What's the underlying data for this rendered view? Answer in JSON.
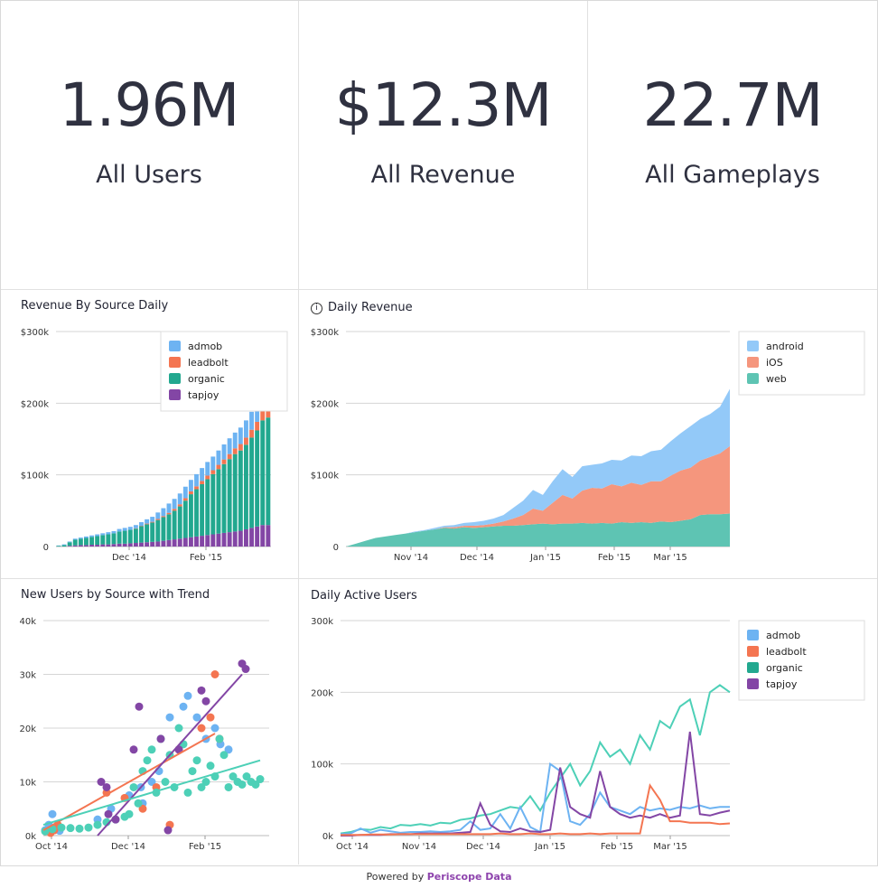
{
  "kpis": [
    {
      "value": "1.96M",
      "label": "All Users"
    },
    {
      "value": "$12.3M",
      "label": "All Revenue"
    },
    {
      "value": "22.7M",
      "label": "All Gameplays"
    }
  ],
  "colors": {
    "admob": "#6db3f2",
    "leadbolt": "#f47551",
    "organic": "#22a88f",
    "organic_line": "#4dd0b7",
    "tapjoy": "#8346a5",
    "android": "#93c9f8",
    "ios": "#f5967d",
    "web": "#5ec4b3"
  },
  "footer": {
    "prefix": "Powered by ",
    "brand": "Periscope Data"
  },
  "chart_data": [
    {
      "type": "bar",
      "title": "Revenue By Source Daily",
      "stacked": true,
      "yticks": [
        "$300k",
        "$200k",
        "$100k",
        "0"
      ],
      "ylim": [
        0,
        300000
      ],
      "xticks": [
        "Dec '14",
        "Feb '15"
      ],
      "legend": [
        "admob",
        "leadbolt",
        "organic",
        "tapjoy"
      ],
      "legend_position": "top-right",
      "grid": true,
      "series": [
        {
          "name": "tapjoy",
          "values": [
            0,
            0,
            1000,
            1500,
            2000,
            2000,
            2500,
            2500,
            3000,
            3000,
            3500,
            4000,
            4000,
            4500,
            5000,
            5500,
            6000,
            6500,
            7000,
            8000,
            9000,
            10000,
            11000,
            12000,
            13000,
            14000,
            15000,
            16000,
            17000,
            18000,
            19000,
            20000,
            21000,
            22000,
            24000,
            26000,
            28000,
            30000,
            30000
          ]
        },
        {
          "name": "organic",
          "values": [
            1000,
            2000,
            5000,
            8000,
            9000,
            10000,
            11000,
            12000,
            13000,
            14000,
            15000,
            17000,
            18000,
            19000,
            20000,
            23000,
            25000,
            27000,
            30000,
            33000,
            36000,
            40000,
            45000,
            52000,
            60000,
            66000,
            72000,
            78000,
            84000,
            90000,
            96000,
            102000,
            108000,
            112000,
            118000,
            126000,
            134000,
            146000,
            150000
          ]
        },
        {
          "name": "leadbolt",
          "values": [
            0,
            0,
            0,
            0,
            0,
            0,
            0,
            0,
            0,
            0,
            0,
            0,
            0,
            0,
            500,
            500,
            1000,
            1000,
            1500,
            1500,
            2000,
            2500,
            3000,
            3500,
            4000,
            4000,
            4500,
            5000,
            5500,
            6000,
            6500,
            7000,
            8000,
            9000,
            10000,
            11000,
            12000,
            13000,
            14000
          ]
        },
        {
          "name": "admob",
          "values": [
            500,
            1000,
            1000,
            1500,
            1500,
            2000,
            2000,
            2500,
            2500,
            3000,
            3000,
            3500,
            4000,
            4000,
            4500,
            5000,
            6000,
            7000,
            9000,
            11000,
            13000,
            14000,
            15000,
            16000,
            16000,
            17000,
            18000,
            19000,
            19000,
            20000,
            21000,
            22000,
            22000,
            23000,
            24000,
            25000,
            26000,
            26000,
            27000
          ]
        }
      ]
    },
    {
      "type": "area",
      "title": "Daily Revenue",
      "stacked": true,
      "yticks": [
        "$300k",
        "$200k",
        "$100k",
        "0"
      ],
      "ylim": [
        0,
        300000
      ],
      "xticks": [
        "Nov '14",
        "Dec '14",
        "Jan '15",
        "Feb '15",
        "Mar '15"
      ],
      "legend": [
        "android",
        "iOS",
        "web"
      ],
      "legend_position": "top-right",
      "grid": true,
      "series": [
        {
          "name": "web",
          "values": [
            0,
            4000,
            8000,
            12000,
            14000,
            16000,
            18000,
            20000,
            22000,
            24000,
            26000,
            25000,
            27000,
            26000,
            27000,
            28000,
            29000,
            29000,
            30000,
            31000,
            32000,
            31000,
            32000,
            32000,
            33000,
            32000,
            33000,
            32000,
            34000,
            33000,
            34000,
            33000,
            35000,
            34000,
            36000,
            38000,
            44000,
            45000,
            45000,
            46000
          ]
        },
        {
          "name": "iOS",
          "values": [
            0,
            0,
            0,
            0,
            0,
            0,
            0,
            0,
            0,
            0,
            1000,
            2000,
            2000,
            3000,
            3000,
            4000,
            6000,
            10000,
            14000,
            22000,
            18000,
            30000,
            40000,
            35000,
            45000,
            50000,
            48000,
            55000,
            50000,
            56000,
            52000,
            58000,
            56000,
            65000,
            70000,
            72000,
            76000,
            80000,
            85000,
            94000
          ]
        },
        {
          "name": "android",
          "values": [
            0,
            0,
            0,
            0,
            0,
            0,
            0,
            1000,
            1000,
            2000,
            2000,
            3000,
            4000,
            5000,
            6000,
            7000,
            9000,
            15000,
            20000,
            26000,
            22000,
            30000,
            36000,
            30000,
            34000,
            32000,
            35000,
            34000,
            36000,
            38000,
            40000,
            42000,
            44000,
            48000,
            52000,
            58000,
            58000,
            60000,
            65000,
            80000
          ]
        }
      ]
    },
    {
      "type": "scatter",
      "title": "New Users by Source with Trend",
      "yticks": [
        "40k",
        "30k",
        "20k",
        "10k",
        "0k"
      ],
      "ylim": [
        0,
        40000
      ],
      "xticks": [
        "Oct '14",
        "Dec '14",
        "Feb '15"
      ],
      "grid": true,
      "series": [
        {
          "name": "admob",
          "x": [
            2,
            6,
            10,
            14,
            18,
            60,
            75,
            95,
            108,
            110,
            120,
            128,
            140,
            155,
            160,
            170,
            180,
            190,
            196,
            205
          ],
          "y": [
            1000,
            2000,
            4000,
            1500,
            900,
            3000,
            5000,
            7500,
            9000,
            6000,
            10000,
            12000,
            22000,
            24000,
            26000,
            22000,
            18000,
            20000,
            17000,
            16000
          ]
        },
        {
          "name": "leadbolt",
          "x": [
            8,
            12,
            16,
            70,
            90,
            110,
            125,
            140,
            150,
            175,
            185,
            190,
            195
          ],
          "y": [
            500,
            1000,
            2000,
            8000,
            7000,
            5000,
            9000,
            2000,
            16000,
            20000,
            22000,
            30000,
            18000
          ]
        },
        {
          "name": "organic",
          "x": [
            2,
            10,
            20,
            30,
            40,
            50,
            60,
            70,
            80,
            90,
            95,
            100,
            105,
            110,
            115,
            120,
            125,
            130,
            135,
            140,
            145,
            150,
            155,
            160,
            165,
            170,
            175,
            180,
            185,
            190,
            195,
            200,
            205,
            210,
            215,
            220,
            225,
            230,
            235,
            240
          ],
          "y": [
            800,
            1200,
            1500,
            1400,
            1300,
            1500,
            2000,
            2500,
            3000,
            3500,
            4000,
            9000,
            6000,
            12000,
            14000,
            16000,
            8000,
            18000,
            10000,
            15000,
            9000,
            20000,
            17000,
            8000,
            12000,
            14000,
            9000,
            10000,
            13000,
            11000,
            18000,
            15000,
            9000,
            11000,
            10000,
            9500,
            11000,
            10000,
            9500,
            10500
          ]
        },
        {
          "name": "tapjoy",
          "x": [
            64,
            70,
            72,
            80,
            100,
            106,
            130,
            138,
            150,
            175,
            180,
            220,
            224
          ],
          "y": [
            10000,
            9000,
            4000,
            3000,
            16000,
            24000,
            18000,
            1000,
            16000,
            27000,
            25000,
            32000,
            31000
          ]
        }
      ],
      "trends": [
        {
          "name": "leadbolt",
          "x1": 0,
          "y1": 1000,
          "x2": 190,
          "y2": 19000
        },
        {
          "name": "tapjoy",
          "x1": 60,
          "y1": 0,
          "x2": 220,
          "y2": 30000
        },
        {
          "name": "organic",
          "x1": 0,
          "y1": 2000,
          "x2": 240,
          "y2": 14000
        }
      ]
    },
    {
      "type": "line",
      "title": "Daily Active Users",
      "yticks": [
        "300k",
        "200k",
        "100k",
        "0k"
      ],
      "ylim": [
        0,
        300000
      ],
      "xticks": [
        "Oct '14",
        "Nov '14",
        "Dec '14",
        "Jan '15",
        "Feb '15",
        "Mar '15"
      ],
      "legend": [
        "admob",
        "leadbolt",
        "organic",
        "tapjoy"
      ],
      "legend_position": "top-right",
      "grid": true,
      "series": [
        {
          "name": "organic",
          "values": [
            3000,
            5000,
            9000,
            8000,
            12000,
            10000,
            15000,
            14000,
            16000,
            14000,
            18000,
            17000,
            22000,
            24000,
            28000,
            30000,
            35000,
            40000,
            38000,
            55000,
            35000,
            60000,
            80000,
            100000,
            70000,
            90000,
            130000,
            110000,
            120000,
            100000,
            140000,
            120000,
            160000,
            150000,
            180000,
            190000,
            140000,
            200000,
            210000,
            200000
          ]
        },
        {
          "name": "admob",
          "values": [
            2000,
            3000,
            10000,
            4000,
            8000,
            6000,
            4000,
            5000,
            5000,
            6000,
            5000,
            6000,
            8000,
            20000,
            8000,
            10000,
            30000,
            10000,
            40000,
            12000,
            5000,
            100000,
            90000,
            20000,
            15000,
            30000,
            60000,
            40000,
            35000,
            30000,
            40000,
            35000,
            38000,
            36000,
            40000,
            38000,
            42000,
            38000,
            40000,
            40000
          ]
        },
        {
          "name": "tapjoy",
          "values": [
            0,
            0,
            1000,
            1000,
            1000,
            2000,
            2000,
            2000,
            3000,
            3000,
            3000,
            3000,
            4000,
            5000,
            45000,
            15000,
            6000,
            5000,
            10000,
            6000,
            5000,
            8000,
            95000,
            40000,
            30000,
            25000,
            90000,
            40000,
            30000,
            25000,
            28000,
            25000,
            30000,
            25000,
            28000,
            145000,
            30000,
            28000,
            32000,
            35000
          ]
        },
        {
          "name": "leadbolt",
          "values": [
            1000,
            1000,
            1000,
            1500,
            1500,
            1500,
            2000,
            2000,
            2000,
            2000,
            2000,
            2000,
            2000,
            2000,
            2000,
            2000,
            3000,
            2000,
            2000,
            3000,
            2000,
            2000,
            3000,
            2000,
            2000,
            3000,
            2000,
            3000,
            3000,
            3000,
            3000,
            70000,
            50000,
            20000,
            20000,
            18000,
            18000,
            18000,
            16000,
            17000
          ]
        }
      ]
    }
  ]
}
